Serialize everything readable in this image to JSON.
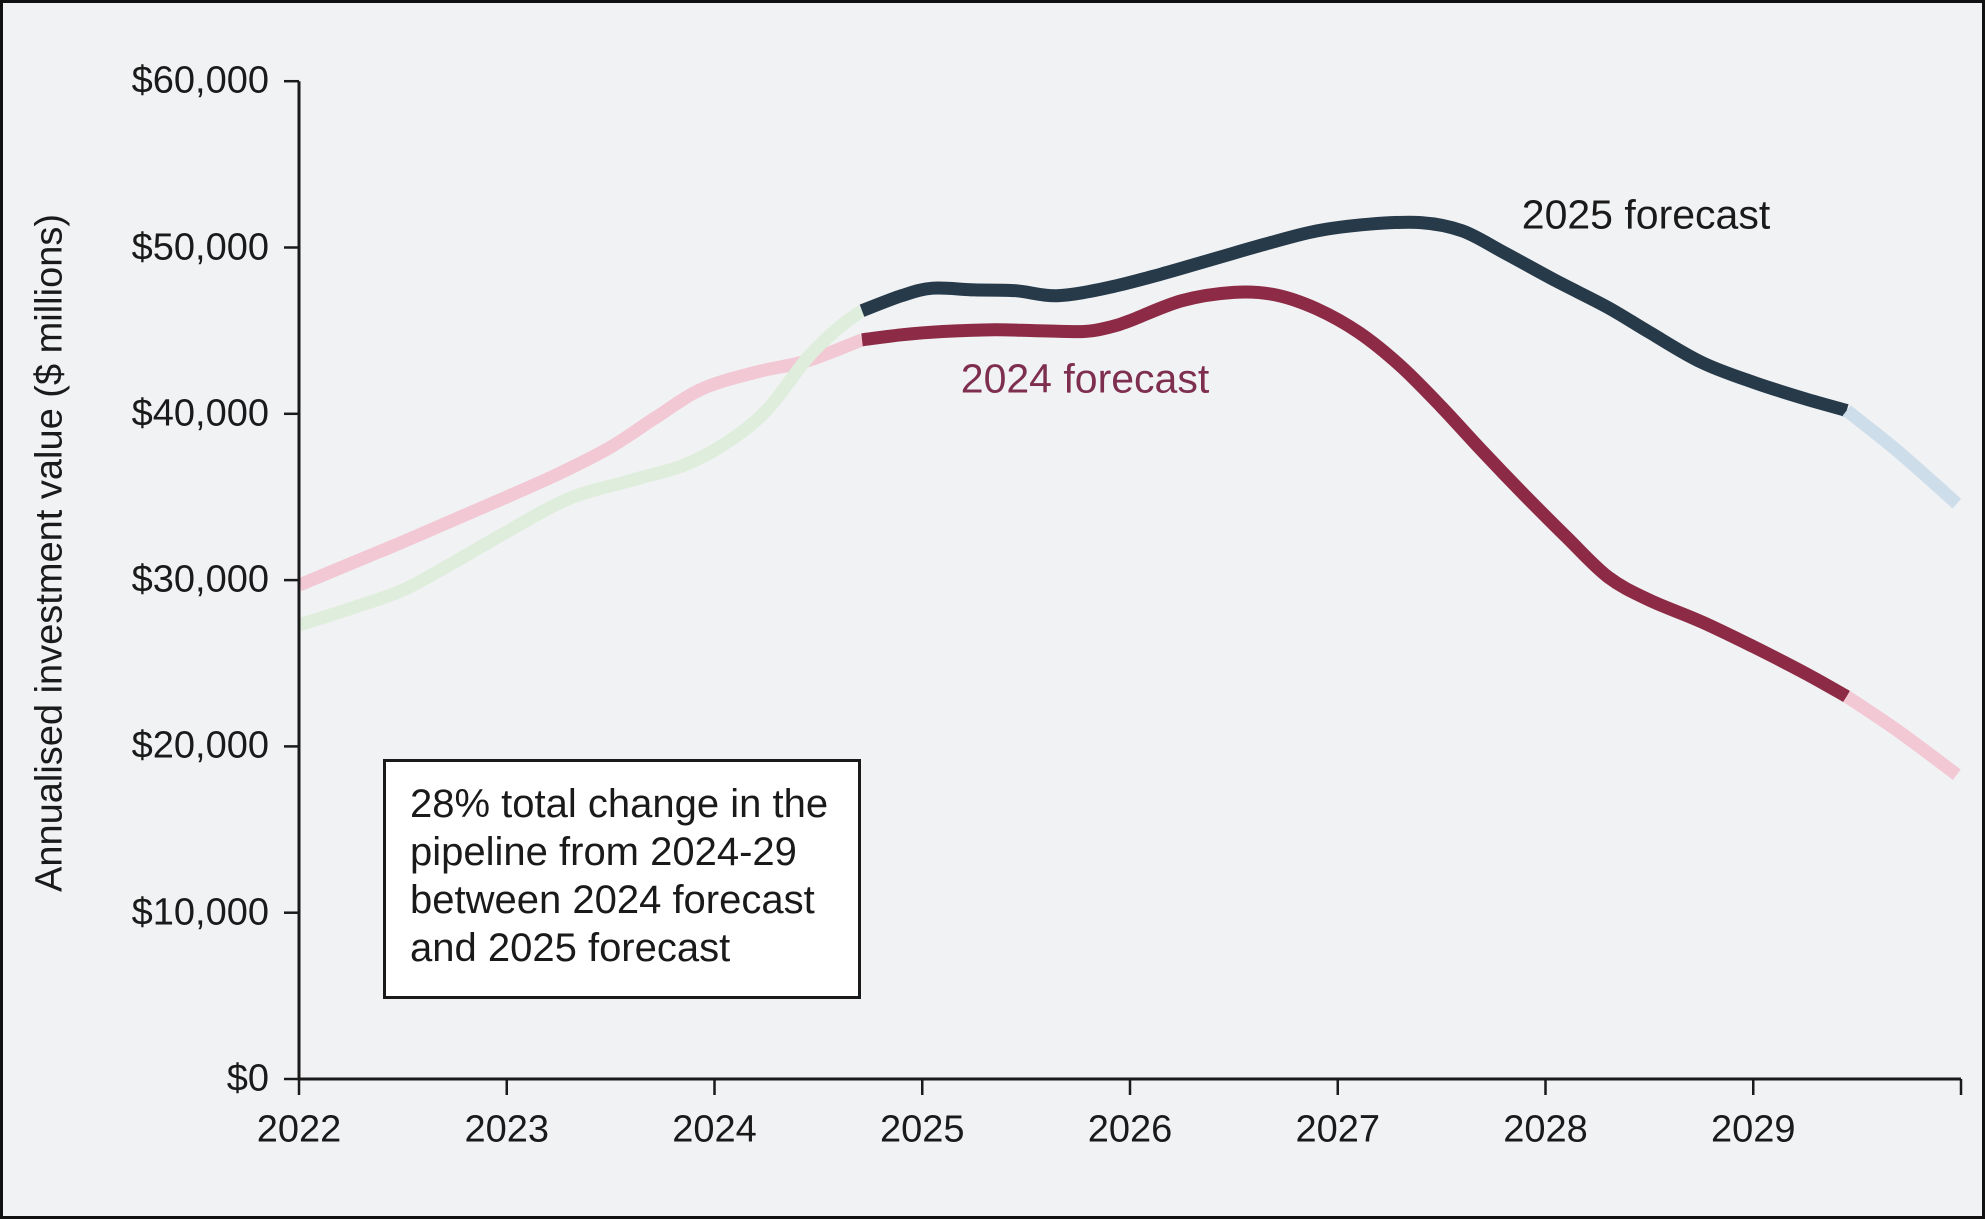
{
  "page": {
    "background": "#f1f2f4",
    "frame_color": "#111111",
    "text_color": "#1a1a1a"
  },
  "y_axis": {
    "title": "Annualised investment value ($ millions)",
    "tick_labels": [
      "$60,000",
      "$50,000",
      "$40,000",
      "$30,000",
      "$20,000",
      "$10,000",
      "$0"
    ],
    "tick_values": [
      60000,
      50000,
      40000,
      30000,
      20000,
      10000,
      0
    ]
  },
  "x_axis": {
    "tick_labels": [
      "2022",
      "2023",
      "2024",
      "2025",
      "2026",
      "2027",
      "2028",
      "2029"
    ],
    "tick_values": [
      2022,
      2023,
      2024,
      2025,
      2026,
      2027,
      2028,
      2029
    ]
  },
  "series_labels": {
    "fc2025": "2025 forecast",
    "fc2024": "2024 forecast"
  },
  "annotation_box": {
    "lines": [
      "28% total change in the",
      "pipeline from 2024-29",
      "between 2024 forecast",
      "and 2025 forecast"
    ]
  },
  "colors": {
    "navy": "#263a4a",
    "maroon": "#8d2b46",
    "light_pink": "#f2c8d4",
    "light_green": "#dfeddc",
    "light_blue": "#cdddea",
    "maroon_label": "#7e2e4e",
    "axis": "#1a1a1a"
  },
  "chart_data": {
    "type": "line",
    "title": "",
    "xlabel": "",
    "ylabel": "Annualised investment value ($ millions)",
    "ylim": [
      0,
      60000
    ],
    "xlim": [
      2022,
      2030
    ],
    "grid": false,
    "legend_position": "inline-labels",
    "series": [
      {
        "name": "2024 forecast (historical)",
        "color_key": "light_pink",
        "points": [
          [
            2022.0,
            29700
          ],
          [
            2022.25,
            31000
          ],
          [
            2022.5,
            32300
          ],
          [
            2022.75,
            33650
          ],
          [
            2023.0,
            35000
          ],
          [
            2023.25,
            36400
          ],
          [
            2023.5,
            38000
          ],
          [
            2023.72,
            39800
          ],
          [
            2023.94,
            41500
          ],
          [
            2024.2,
            42500
          ],
          [
            2024.45,
            43200
          ],
          [
            2024.71,
            44450
          ]
        ]
      },
      {
        "name": "2025 forecast (historical)",
        "color_key": "light_green",
        "points": [
          [
            2022.0,
            27300
          ],
          [
            2022.25,
            28300
          ],
          [
            2022.5,
            29400
          ],
          [
            2022.75,
            31100
          ],
          [
            2023.0,
            32900
          ],
          [
            2023.3,
            34900
          ],
          [
            2023.6,
            36000
          ],
          [
            2023.85,
            36900
          ],
          [
            2024.05,
            38200
          ],
          [
            2024.25,
            40200
          ],
          [
            2024.45,
            43400
          ],
          [
            2024.6,
            45200
          ],
          [
            2024.71,
            46200
          ]
        ]
      },
      {
        "name": "2024 forecast",
        "color_key": "maroon",
        "points": [
          [
            2024.71,
            44450
          ],
          [
            2024.9,
            44750
          ],
          [
            2025.1,
            44950
          ],
          [
            2025.35,
            45050
          ],
          [
            2025.55,
            45000
          ],
          [
            2025.78,
            44950
          ],
          [
            2025.9,
            45200
          ],
          [
            2026.0,
            45600
          ],
          [
            2026.25,
            46800
          ],
          [
            2026.5,
            47300
          ],
          [
            2026.7,
            47150
          ],
          [
            2026.9,
            46300
          ],
          [
            2027.1,
            44900
          ],
          [
            2027.3,
            42900
          ],
          [
            2027.5,
            40400
          ],
          [
            2027.7,
            37700
          ],
          [
            2027.9,
            35100
          ],
          [
            2028.1,
            32600
          ],
          [
            2028.3,
            30200
          ],
          [
            2028.5,
            28800
          ],
          [
            2028.75,
            27500
          ],
          [
            2029.0,
            26000
          ],
          [
            2029.25,
            24400
          ],
          [
            2029.45,
            23000
          ]
        ]
      },
      {
        "name": "2025 forecast",
        "color_key": "navy",
        "points": [
          [
            2024.71,
            46200
          ],
          [
            2024.9,
            47100
          ],
          [
            2025.05,
            47550
          ],
          [
            2025.25,
            47450
          ],
          [
            2025.45,
            47400
          ],
          [
            2025.65,
            47100
          ],
          [
            2025.9,
            47600
          ],
          [
            2026.15,
            48400
          ],
          [
            2026.4,
            49300
          ],
          [
            2026.65,
            50200
          ],
          [
            2026.9,
            51000
          ],
          [
            2027.15,
            51400
          ],
          [
            2027.4,
            51500
          ],
          [
            2027.6,
            51000
          ],
          [
            2027.8,
            49700
          ],
          [
            2028.05,
            48000
          ],
          [
            2028.3,
            46400
          ],
          [
            2028.5,
            44900
          ],
          [
            2028.75,
            43100
          ],
          [
            2029.0,
            41900
          ],
          [
            2029.25,
            40900
          ],
          [
            2029.45,
            40200
          ]
        ]
      },
      {
        "name": "2024 forecast (projection tail)",
        "color_key": "light_pink",
        "points": [
          [
            2029.45,
            23000
          ],
          [
            2029.7,
            20900
          ],
          [
            2029.98,
            18300
          ]
        ]
      },
      {
        "name": "2025 forecast (projection tail)",
        "color_key": "light_blue",
        "points": [
          [
            2029.45,
            40200
          ],
          [
            2029.7,
            37700
          ],
          [
            2029.98,
            34600
          ]
        ]
      }
    ]
  }
}
